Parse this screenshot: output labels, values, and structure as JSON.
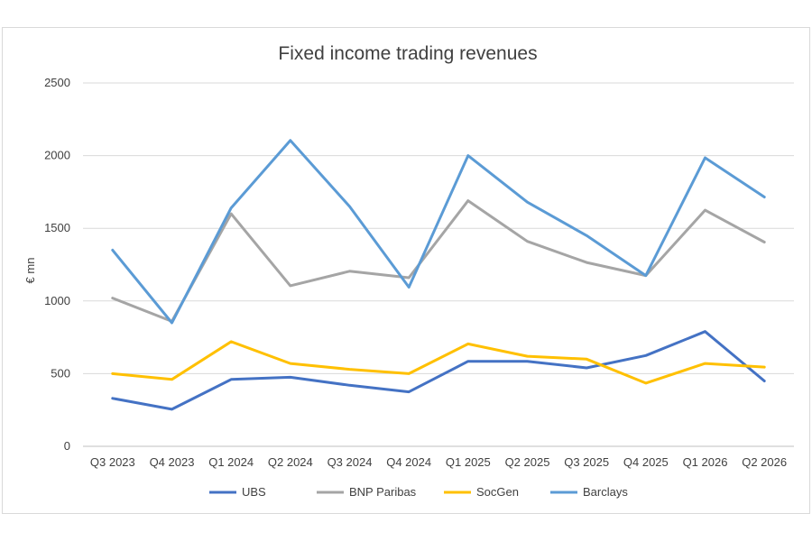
{
  "chart_data": {
    "type": "line",
    "title": "Fixed income trading revenues",
    "xlabel": "",
    "ylabel": "€ mn",
    "ylim": [
      0,
      2500
    ],
    "yticks": [
      0,
      500,
      1000,
      1500,
      2000,
      2500
    ],
    "grid": true,
    "legend_position": "bottom",
    "categories": [
      "Q3 2023",
      "Q4 2023",
      "Q1 2024",
      "Q2 2024",
      "Q3 2024",
      "Q4 2024",
      "Q1 2025",
      "Q2 2025",
      "Q3 2025",
      "Q4 2025",
      "Q1 2026",
      "Q2 2026"
    ],
    "series": [
      {
        "name": "UBS",
        "color": "#4472c4",
        "values": [
          330,
          255,
          460,
          475,
          420,
          375,
          585,
          585,
          540,
          625,
          790,
          450
        ]
      },
      {
        "name": "BNP Paribas",
        "color": "#a5a5a5",
        "values": [
          1020,
          860,
          1600,
          1105,
          1205,
          1160,
          1690,
          1410,
          1265,
          1175,
          1625,
          1405
        ]
      },
      {
        "name": "SocGen",
        "color": "#ffc000",
        "values": [
          500,
          460,
          720,
          570,
          530,
          500,
          705,
          620,
          600,
          435,
          570,
          545
        ]
      },
      {
        "name": "Barclays",
        "color": "#5b9bd5",
        "values": [
          1350,
          850,
          1640,
          2105,
          1650,
          1095,
          2000,
          1680,
          1450,
          1175,
          1985,
          1715
        ]
      }
    ]
  }
}
